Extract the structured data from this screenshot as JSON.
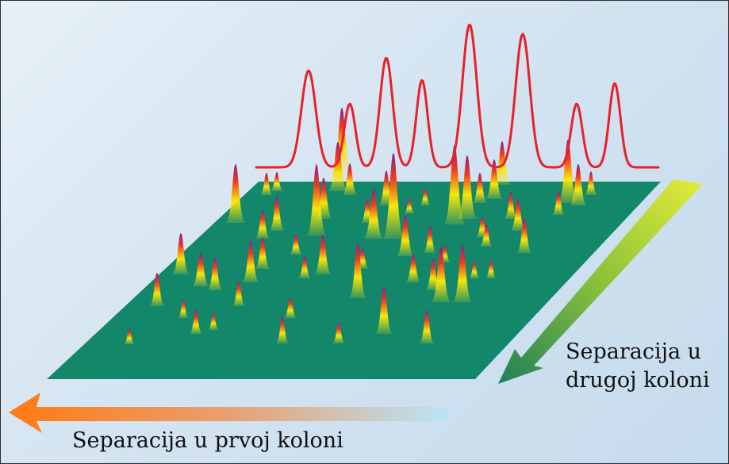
{
  "labels": {
    "second_column_line1": "Separacija u",
    "second_column_line2": "drugoj koloni",
    "first_column": "Separacija u prvoj koloni"
  },
  "colors": {
    "plane": "#13876a",
    "trace": "#e8202a",
    "peak_top": "#8a1f8a",
    "peak_mid": "#f03a20",
    "peak_low": "#f7e60a",
    "arrow_first_start": "#ff7a12",
    "arrow_first_end": "#b9e5f7",
    "arrow_second_start": "#1f7f58",
    "arrow_second_end": "#e3eb3a"
  },
  "icons": {
    "first_column_arrow": "arrow-left-icon",
    "second_column_arrow": "arrow-down-left-icon"
  }
}
